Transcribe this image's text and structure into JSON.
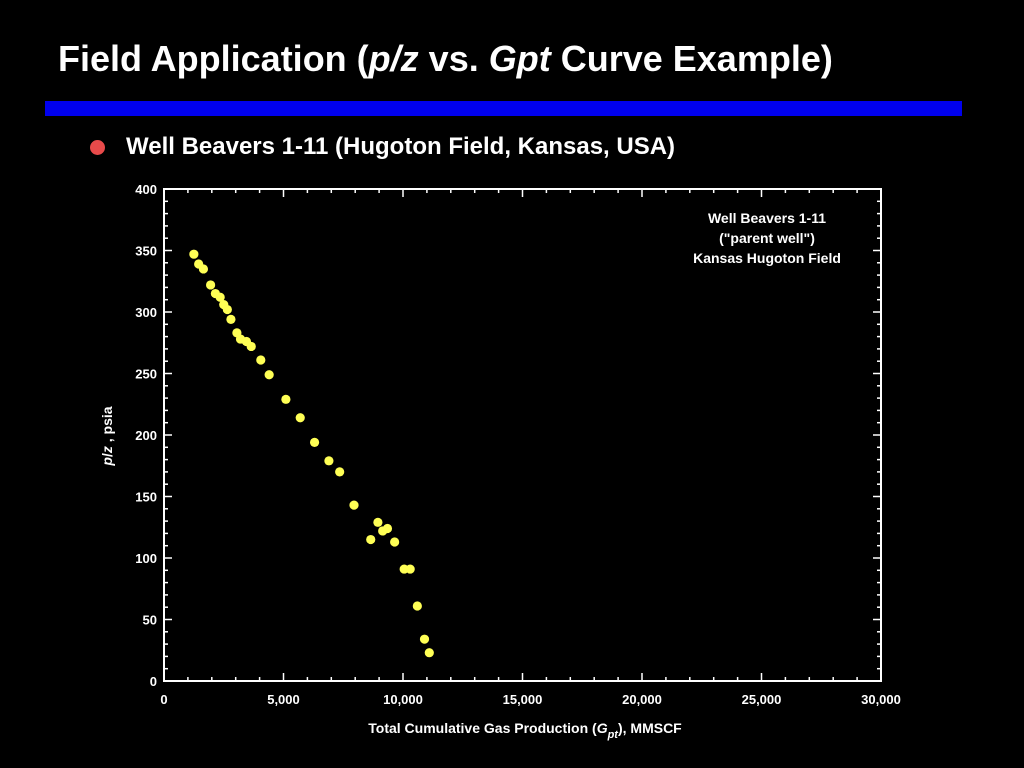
{
  "slide": {
    "title_parts": [
      "Field Application (",
      "p/z",
      " vs. ",
      "Gpt",
      " Curve Example)"
    ],
    "rule_color": "#0000ee",
    "bullet_color": "#e84a4a",
    "bullet_text": "Well Beavers 1-11 (Hugoton Field, Kansas, USA)"
  },
  "chart_data": {
    "type": "scatter",
    "title": "",
    "xlabel_parts": [
      "Total Cumulative Gas Production (",
      "G",
      "pt",
      "), MMSCF"
    ],
    "ylabel_parts": [
      "p",
      "/",
      "z",
      " , psia"
    ],
    "xlim": [
      0,
      30000
    ],
    "ylim": [
      0,
      400
    ],
    "x_ticks": [
      0,
      5000,
      10000,
      15000,
      20000,
      25000,
      30000
    ],
    "x_tick_labels": [
      "0",
      "5,000",
      "10,000",
      "15,000",
      "20,000",
      "25,000",
      "30,000"
    ],
    "y_ticks": [
      0,
      50,
      100,
      150,
      200,
      250,
      300,
      350,
      400
    ],
    "y_tick_labels": [
      "0",
      "50",
      "100",
      "150",
      "200",
      "250",
      "300",
      "350",
      "400"
    ],
    "grid": false,
    "background": "#000000",
    "axis_color": "#ffffff",
    "marker_color": "#ffff55",
    "annotation_lines": [
      "Well Beavers 1-11",
      "(\"parent well\")",
      "Kansas Hugoton Field"
    ],
    "annotation_position": "top-right",
    "series": [
      {
        "points": [
          [
            1250,
            347
          ],
          [
            1450,
            339
          ],
          [
            1650,
            335
          ],
          [
            1950,
            322
          ],
          [
            2150,
            315
          ],
          [
            2350,
            312
          ],
          [
            2500,
            306
          ],
          [
            2650,
            302
          ],
          [
            2800,
            294
          ],
          [
            3050,
            283
          ],
          [
            3200,
            278
          ],
          [
            3450,
            276
          ],
          [
            3650,
            272
          ],
          [
            4050,
            261
          ],
          [
            4400,
            249
          ],
          [
            5100,
            229
          ],
          [
            5700,
            214
          ],
          [
            6300,
            194
          ],
          [
            6900,
            179
          ],
          [
            7350,
            170
          ],
          [
            7950,
            143
          ],
          [
            8650,
            115
          ],
          [
            8950,
            129
          ],
          [
            9150,
            122
          ],
          [
            9350,
            124
          ],
          [
            9650,
            113
          ],
          [
            10050,
            91
          ],
          [
            10300,
            91
          ],
          [
            10600,
            61
          ],
          [
            10900,
            34
          ],
          [
            11100,
            23
          ]
        ]
      }
    ]
  }
}
